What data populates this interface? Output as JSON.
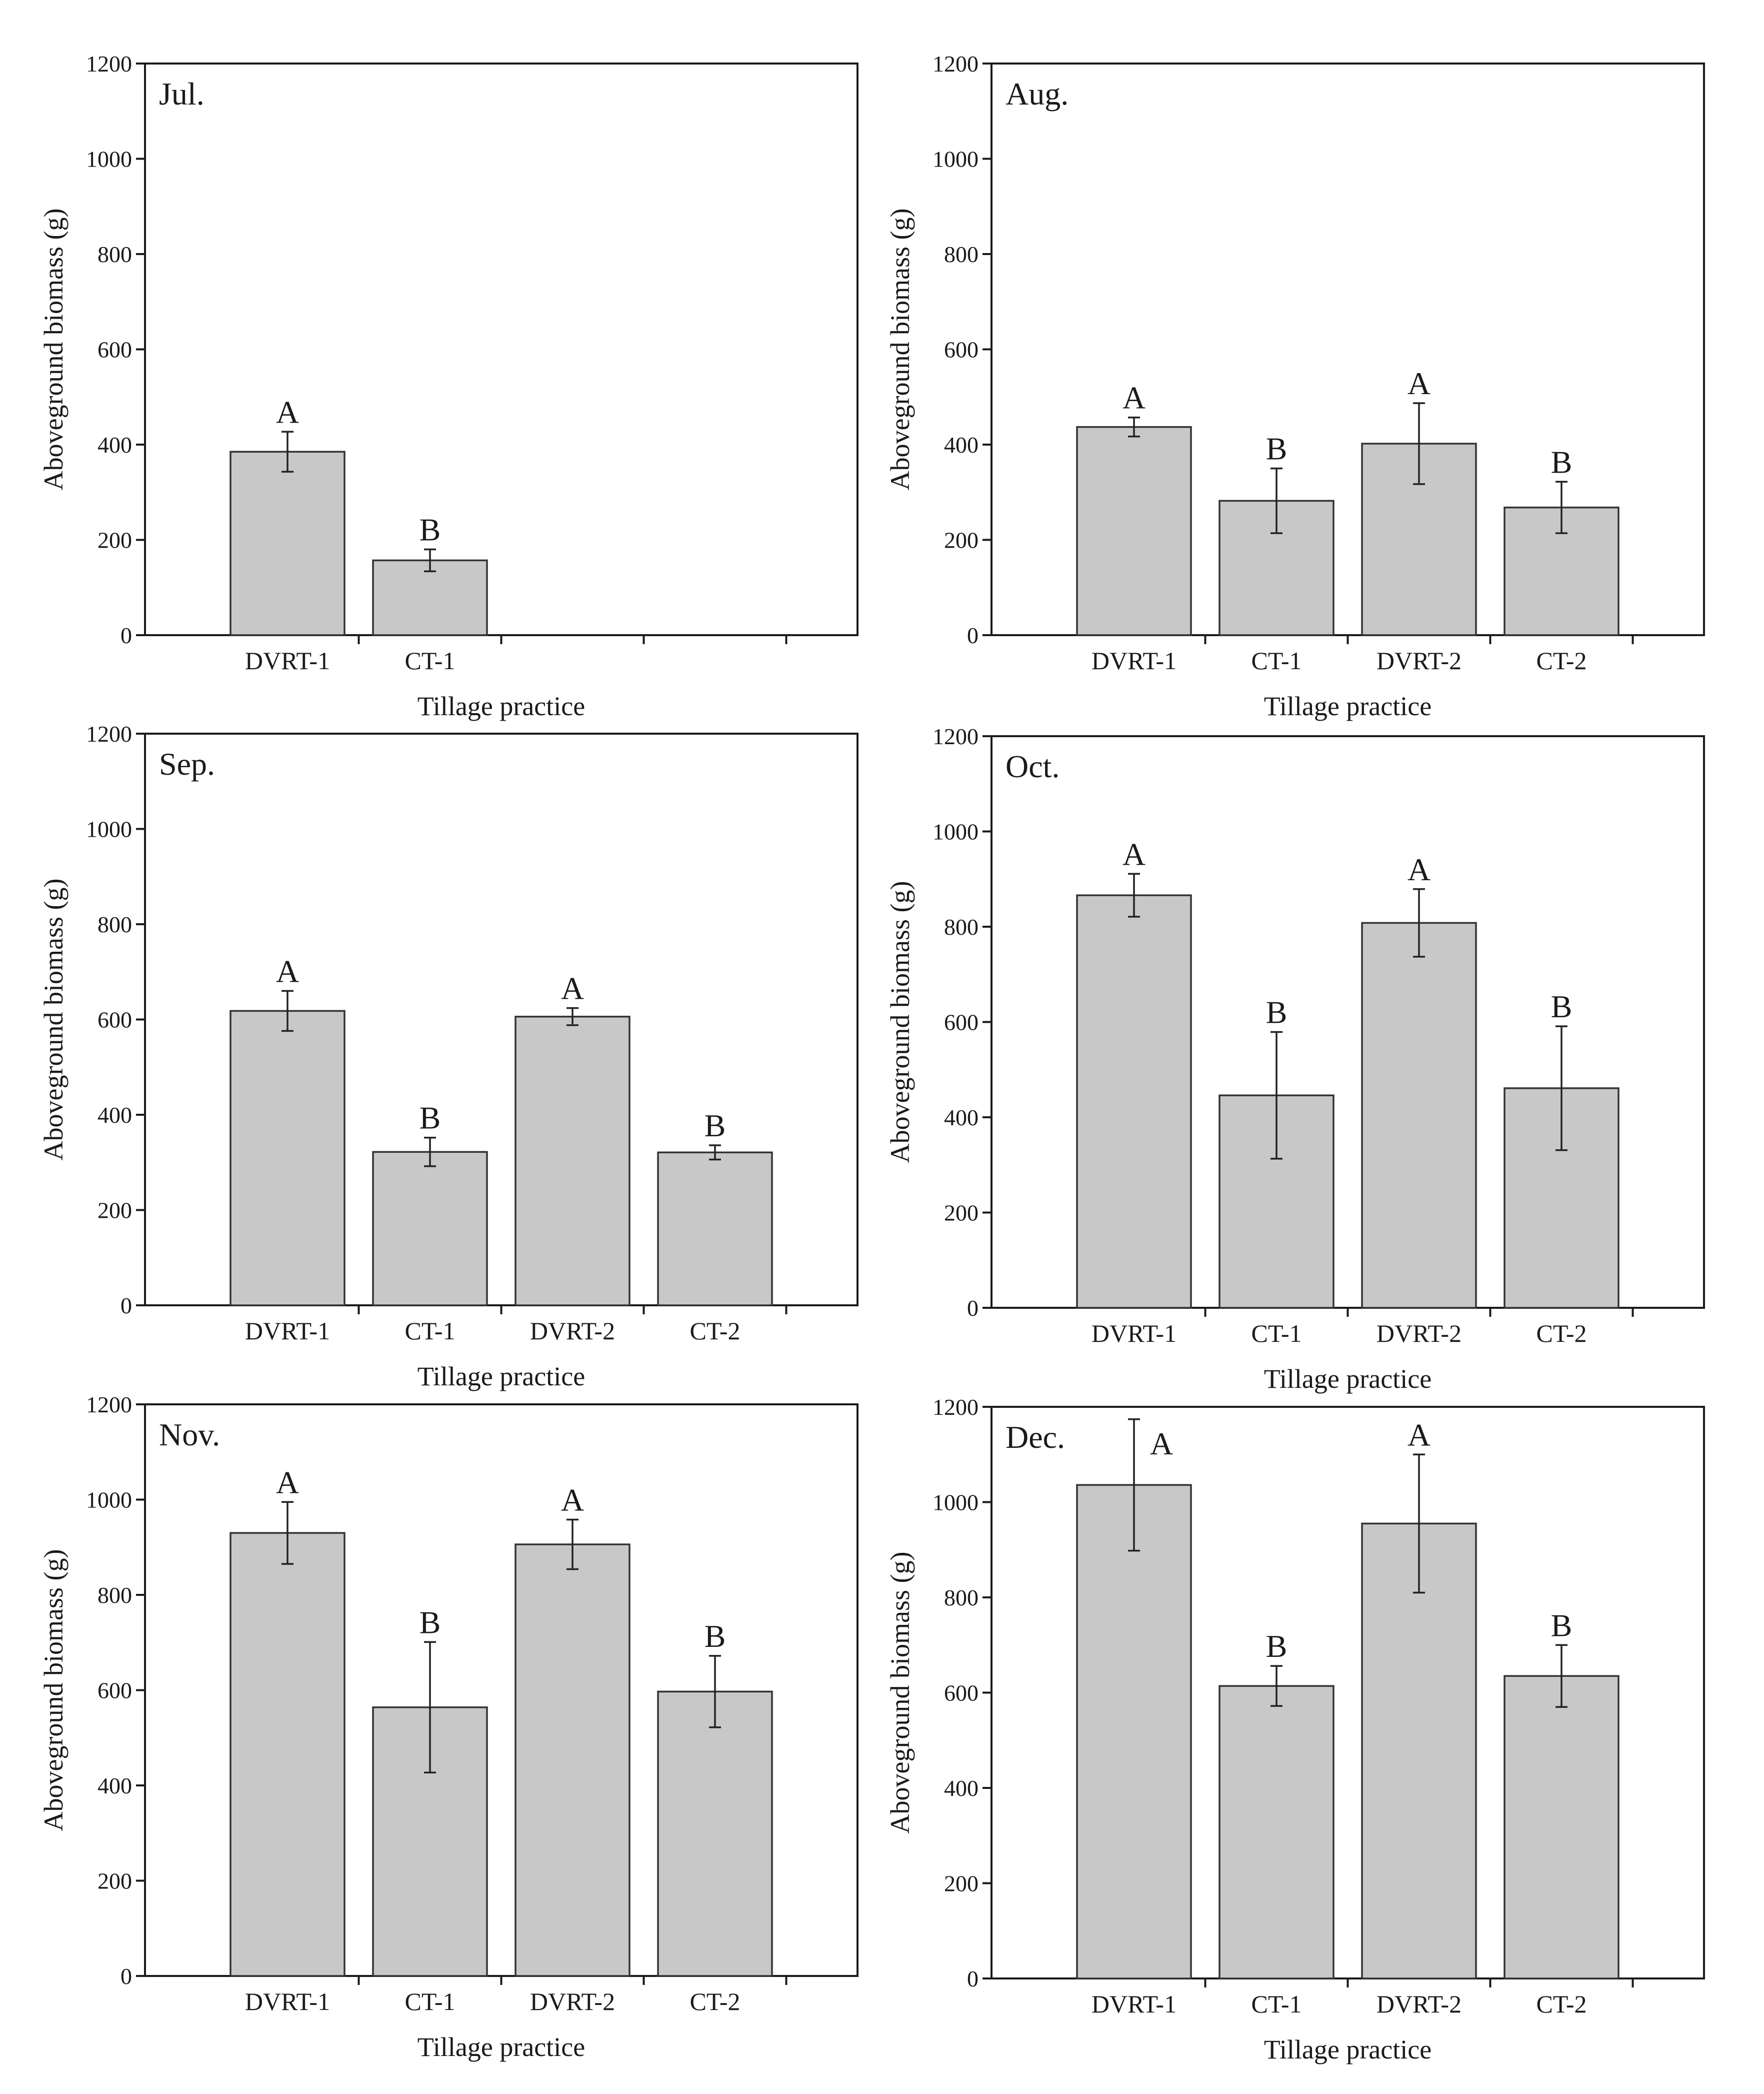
{
  "colors": {
    "bar_fill": "#c8c8c8",
    "bar_stroke": "#333333",
    "axis": "#1a1a1a",
    "background": "#ffffff"
  },
  "chart_data": [
    {
      "type": "bar",
      "title": "Jul.",
      "xlabel": "Tillage practice",
      "ylabel": "Aboveground biomass (g)",
      "ylim": [
        0,
        1200
      ],
      "yticks": [
        0,
        200,
        400,
        600,
        800,
        1000,
        1200
      ],
      "categories": [
        "DVRT-1",
        "CT-1"
      ],
      "slots": 5,
      "values": [
        385,
        157
      ],
      "errors": [
        42,
        23
      ],
      "letters": [
        "A",
        "B"
      ]
    },
    {
      "type": "bar",
      "title": "Aug.",
      "xlabel": "Tillage practice",
      "ylabel": "Aboveground biomass (g)",
      "ylim": [
        0,
        1200
      ],
      "yticks": [
        0,
        200,
        400,
        600,
        800,
        1000,
        1200
      ],
      "categories": [
        "DVRT-1",
        "CT-1",
        "DVRT-2",
        "CT-2"
      ],
      "slots": 5,
      "values": [
        437,
        282,
        402,
        268
      ],
      "errors": [
        20,
        68,
        85,
        54
      ],
      "letters": [
        "A",
        "B",
        "A",
        "B"
      ]
    },
    {
      "type": "bar",
      "title": "Sep.",
      "xlabel": "Tillage practice",
      "ylabel": "Aboveground biomass (g)",
      "ylim": [
        0,
        1200
      ],
      "yticks": [
        0,
        200,
        400,
        600,
        800,
        1000,
        1200
      ],
      "categories": [
        "DVRT-1",
        "CT-1",
        "DVRT-2",
        "CT-2"
      ],
      "slots": 5,
      "values": [
        618,
        322,
        606,
        321
      ],
      "errors": [
        42,
        30,
        18,
        15
      ],
      "letters": [
        "A",
        "B",
        "A",
        "B"
      ]
    },
    {
      "type": "bar",
      "title": "Oct.",
      "xlabel": "Tillage practice",
      "ylabel": "Aboveground biomass (g)",
      "ylim": [
        0,
        1200
      ],
      "yticks": [
        0,
        200,
        400,
        600,
        800,
        1000,
        1200
      ],
      "categories": [
        "DVRT-1",
        "CT-1",
        "DVRT-2",
        "CT-2"
      ],
      "slots": 5,
      "values": [
        866,
        446,
        808,
        461
      ],
      "errors": [
        45,
        133,
        71,
        130
      ],
      "letters": [
        "A",
        "B",
        "A",
        "B"
      ]
    },
    {
      "type": "bar",
      "title": "Nov.",
      "xlabel": "Tillage practice",
      "ylabel": "Aboveground biomass (g)",
      "ylim": [
        0,
        1200
      ],
      "yticks": [
        0,
        200,
        400,
        600,
        800,
        1000,
        1200
      ],
      "categories": [
        "DVRT-1",
        "CT-1",
        "DVRT-2",
        "CT-2"
      ],
      "slots": 5,
      "values": [
        930,
        564,
        906,
        597
      ],
      "errors": [
        65,
        137,
        52,
        75
      ],
      "letters": [
        "A",
        "B",
        "A",
        "B"
      ]
    },
    {
      "type": "bar",
      "title": "Dec.",
      "xlabel": "Tillage practice",
      "ylabel": "Aboveground biomass (g)",
      "ylim": [
        0,
        1200
      ],
      "yticks": [
        0,
        200,
        400,
        600,
        800,
        1000,
        1200
      ],
      "categories": [
        "DVRT-1",
        "CT-1",
        "DVRT-2",
        "CT-2"
      ],
      "slots": 5,
      "values": [
        1036,
        614,
        955,
        635
      ],
      "errors": [
        138,
        42,
        145,
        65
      ],
      "letters": [
        "A",
        "B",
        "A",
        "B"
      ]
    }
  ]
}
